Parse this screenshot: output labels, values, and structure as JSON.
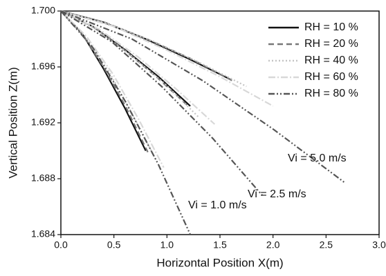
{
  "chart_data": {
    "type": "line",
    "xlabel": "Horizontal Position X(m)",
    "ylabel": "Vertical Position Z(m)",
    "xlim": [
      0,
      3.0
    ],
    "ylim": [
      1.684,
      1.7
    ],
    "xticks": [
      {
        "value": 0,
        "label": "0.0"
      },
      0.5,
      {
        "value": 1,
        "label": "1.0"
      },
      1.5,
      {
        "value": 2,
        "label": "2.0"
      },
      2.5,
      {
        "value": 3,
        "label": "3.0"
      }
    ],
    "yticks": [
      1.684,
      1.688,
      1.692,
      1.696,
      {
        "value": 1.7,
        "label": "1.700"
      }
    ],
    "legend": "upper right",
    "annotations": [
      "Vi = 1.0 m/s",
      "Vi = 2.5 m/s",
      "Vi = 5.0 m/s"
    ],
    "series": [
      {
        "name": "RH = 10 %",
        "color": "#111111",
        "dash": "none",
        "x": [
          0,
          0.2,
          0.4,
          0.6,
          0.8,
          null,
          0,
          0.3,
          0.61,
          0.92,
          1.22,
          null,
          0,
          0.4,
          0.8,
          1.2,
          1.6
        ],
        "values": [
          1.7,
          1.6984,
          1.6959,
          1.6931,
          1.69,
          null,
          1.7,
          1.6989,
          1.6972,
          1.6953,
          1.6932,
          null,
          1.7,
          1.6992,
          1.698,
          1.6966,
          1.6951
        ]
      },
      {
        "name": "RH = 20 %",
        "color": "#777777",
        "dash": "8 5",
        "x": [
          0,
          0.205,
          0.41,
          0.615,
          0.82,
          null,
          0,
          0.3,
          0.6,
          0.9,
          1.2,
          null,
          0,
          0.41,
          0.81,
          1.22,
          1.62
        ],
        "values": [
          1.7,
          1.6983,
          1.6959,
          1.6931,
          1.6899,
          null,
          1.7,
          1.6989,
          1.6972,
          1.6953,
          1.6932,
          null,
          1.7,
          1.6992,
          1.698,
          1.6966,
          1.695
        ]
      },
      {
        "name": "RH = 40 %",
        "color": "#c4c4c4",
        "dash": "2 3",
        "x": [
          0,
          0.225,
          0.45,
          0.675,
          0.9,
          null,
          0,
          0.33,
          0.65,
          0.98,
          1.3,
          null,
          0,
          0.44,
          0.88,
          1.31,
          1.75
        ],
        "values": [
          1.7,
          1.6982,
          1.6957,
          1.6926,
          1.6893,
          null,
          1.7,
          1.6987,
          1.6969,
          1.6948,
          1.6924,
          null,
          1.7,
          1.6991,
          1.6978,
          1.6963,
          1.6946
        ]
      },
      {
        "name": "RH = 60 %",
        "color": "#d8d8d8",
        "dash": "10 3 2 3",
        "x": [
          0,
          0.24,
          0.49,
          0.73,
          0.97,
          null,
          0,
          0.36,
          0.73,
          1.09,
          1.45,
          null,
          0,
          0.5,
          1,
          1.5,
          2
        ],
        "values": [
          1.7,
          1.6982,
          1.6955,
          1.6923,
          1.6888,
          null,
          1.7,
          1.6987,
          1.6967,
          1.6944,
          1.6919,
          null,
          1.7,
          1.6989,
          1.6972,
          1.6953,
          1.6932
        ]
      },
      {
        "name": "RH = 80 %",
        "color": "#555555",
        "dash": "9 3 2 3 2 3",
        "x": [
          0,
          0.3,
          0.61,
          0.92,
          1.22,
          null,
          0,
          0.48,
          0.95,
          1.43,
          1.9,
          null,
          0,
          0.67,
          1.34,
          2.01,
          2.68
        ],
        "values": [
          1.7,
          1.6974,
          1.6935,
          1.689,
          1.684,
          null,
          1.7,
          1.6978,
          1.6946,
          1.6909,
          1.6868,
          null,
          1.7,
          1.698,
          1.695,
          1.6915,
          1.6877
        ]
      }
    ]
  }
}
